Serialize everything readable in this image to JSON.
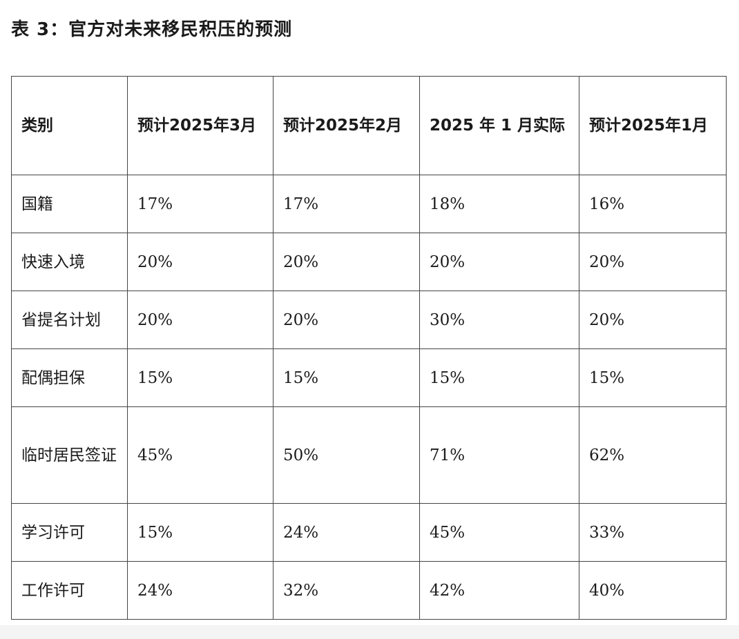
{
  "title": "表 3：官方对未来移民积压的预测",
  "table": {
    "headers": [
      "类别",
      "预计2025年3月",
      "预计2025年2月",
      "2025 年 1 月实际",
      "预计2025年1月"
    ],
    "rows": [
      {
        "category": "国籍",
        "values": [
          "17%",
          "17%",
          "18%",
          "16%"
        ]
      },
      {
        "category": "快速入境",
        "values": [
          "20%",
          "20%",
          "20%",
          "20%"
        ]
      },
      {
        "category": "省提名计划",
        "values": [
          "20%",
          "20%",
          "30%",
          "20%"
        ]
      },
      {
        "category": "配偶担保",
        "values": [
          "15%",
          "15%",
          "15%",
          "15%"
        ]
      },
      {
        "category": "临时居民签证",
        "values": [
          "45%",
          "50%",
          "71%",
          "62%"
        ]
      },
      {
        "category": "学习许可",
        "values": [
          "15%",
          "24%",
          "45%",
          "33%"
        ]
      },
      {
        "category": "工作许可",
        "values": [
          "24%",
          "32%",
          "42%",
          "40%"
        ]
      }
    ]
  }
}
